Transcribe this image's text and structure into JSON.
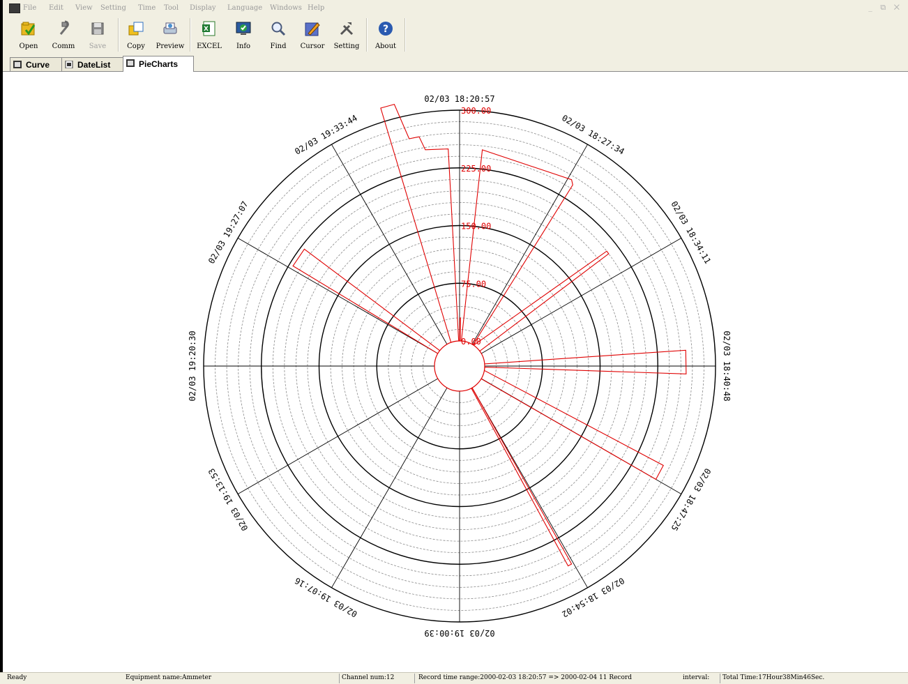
{
  "menu": [
    "File",
    "Edit",
    "View",
    "Setting",
    "Time",
    "Tool",
    "Display",
    "Language",
    "Windows",
    "Help"
  ],
  "window_controls": "_ ⧉ ✕",
  "toolbar": {
    "open": "Open",
    "comm": "Comm",
    "save": "Save",
    "copy": "Copy",
    "preview": "Preview",
    "excel": "EXCEL",
    "info": "Info",
    "find": "Find",
    "cursor": "Cursor",
    "setting": "Setting",
    "about": "About"
  },
  "toolbar_icons": {
    "open": "folder-open-icon",
    "comm": "plug-icon",
    "save": "floppy-disk-icon",
    "copy": "copy-icon",
    "preview": "print-preview-icon",
    "excel": "excel-icon",
    "info": "info-monitor-icon",
    "find": "magnifier-icon",
    "cursor": "pencil-cursor-icon",
    "setting": "tools-icon",
    "about": "help-icon"
  },
  "tabs": [
    {
      "label": "Curve",
      "icon": "chart-tab-icon",
      "active": false
    },
    {
      "label": "DateList",
      "icon": "document-tab-icon",
      "active": false
    },
    {
      "label": "PieCharts",
      "icon": "chart-tab-icon",
      "active": true
    }
  ],
  "chart_data": {
    "type": "polar",
    "radial_ticks": [
      "0.00",
      "75.00",
      "150.00",
      "225.00",
      "300.00"
    ],
    "radial_range": [
      0,
      300
    ],
    "angular_labels": [
      "02/03 18:20:57",
      "02/03 18:27:34",
      "02/03 18:34:11",
      "02/03 18:40:48",
      "02/03 18:47:25",
      "02/03 18:54:02",
      "02/03 19:00:39",
      "02/03 19:07:16",
      "02/03 19:13:53",
      "02/03 19:20:30",
      "02/03 19:27:07",
      "02/03 19:33:44"
    ],
    "series": [
      {
        "color": "#e00000",
        "points": [
          {
            "angle_deg": 0,
            "value": 0
          },
          {
            "angle_deg": 0.5,
            "value": 30
          },
          {
            "angle_deg": 1,
            "value": 30
          },
          {
            "angle_deg": 1.5,
            "value": 0
          },
          {
            "angle_deg": 4,
            "value": 0
          },
          {
            "angle_deg": 6,
            "value": 250
          },
          {
            "angle_deg": 31,
            "value": 250
          },
          {
            "angle_deg": 32,
            "value": 245
          },
          {
            "angle_deg": 32.5,
            "value": 0
          },
          {
            "angle_deg": 34,
            "value": 0
          },
          {
            "angle_deg": 52,
            "value": 210
          },
          {
            "angle_deg": 53,
            "value": 210
          },
          {
            "angle_deg": 53.5,
            "value": 0
          },
          {
            "angle_deg": 85,
            "value": 0
          },
          {
            "angle_deg": 86,
            "value": 262
          },
          {
            "angle_deg": 92,
            "value": 262
          },
          {
            "angle_deg": 92.5,
            "value": 0
          },
          {
            "angle_deg": 100,
            "value": 0
          },
          {
            "angle_deg": 116,
            "value": 262
          },
          {
            "angle_deg": 120,
            "value": 262
          },
          {
            "angle_deg": 120.5,
            "value": 0
          },
          {
            "angle_deg": 150,
            "value": 0
          },
          {
            "angle_deg": 150.5,
            "value": 263
          },
          {
            "angle_deg": 151.5,
            "value": 263
          },
          {
            "angle_deg": 152,
            "value": 0
          },
          {
            "angle_deg": 300,
            "value": 0
          },
          {
            "angle_deg": 301,
            "value": 220
          },
          {
            "angle_deg": 307,
            "value": 220
          },
          {
            "angle_deg": 308,
            "value": 0
          },
          {
            "angle_deg": 340,
            "value": 0
          },
          {
            "angle_deg": 343,
            "value": 318
          },
          {
            "angle_deg": 346,
            "value": 318
          },
          {
            "angle_deg": 347.5,
            "value": 270
          },
          {
            "angle_deg": 349.5,
            "value": 270
          },
          {
            "angle_deg": 350,
            "value": 270
          },
          {
            "angle_deg": 351,
            "value": 252
          },
          {
            "angle_deg": 357,
            "value": 250
          },
          {
            "angle_deg": 358,
            "value": 0
          },
          {
            "angle_deg": 360,
            "value": 0
          }
        ]
      }
    ]
  },
  "status": {
    "ready": "Ready",
    "equipment": "Equipment name:Ammeter",
    "channel": "Channel num:12",
    "range": "Record time range:2000-02-03 18:20:57 => 2000-02-04 11 Record",
    "interval": "interval:",
    "total": "Total Time:17Hour38Min46Sec."
  }
}
